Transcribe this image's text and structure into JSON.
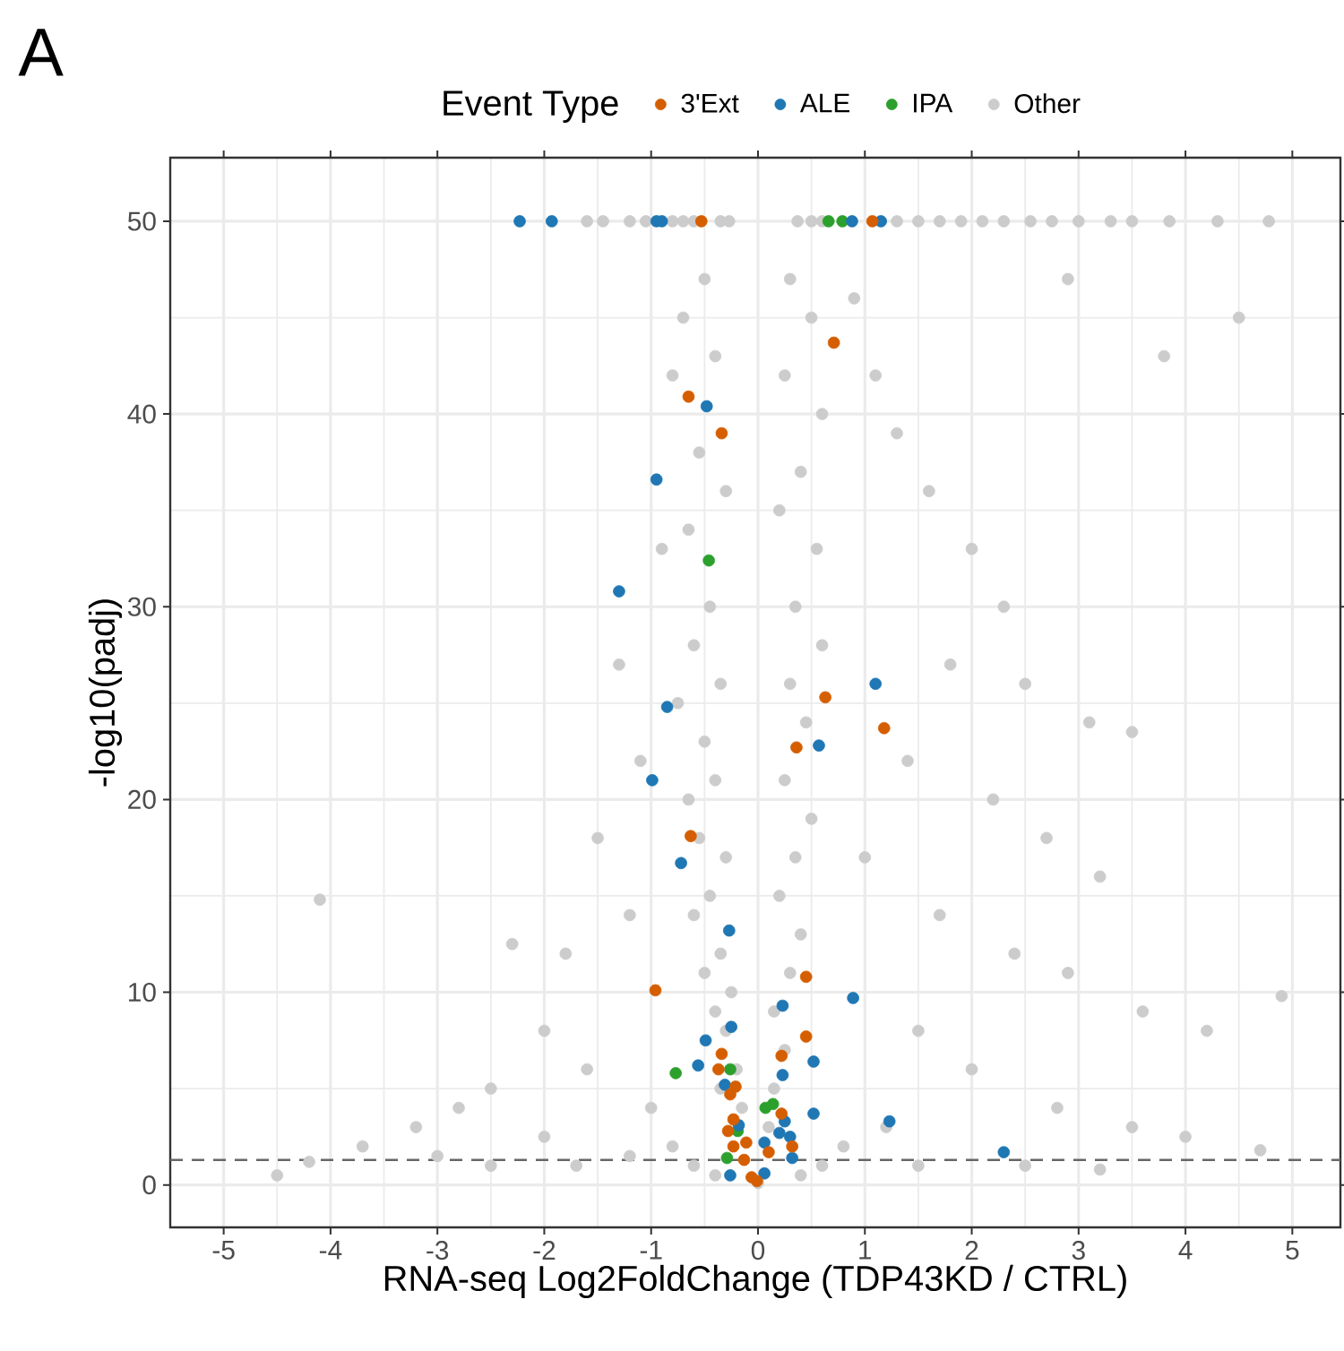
{
  "chart_data": {
    "type": "scatter",
    "xlabel": "RNA-seq Log2FoldChange (TDP43KD / CTRL)",
    "ylabel": "-log10(padj)",
    "legend_title": "Event Type",
    "annotations": [
      "A"
    ],
    "xlim": [
      -5.5,
      5.45
    ],
    "ylim": [
      -2.2,
      53.3
    ],
    "xticks": [
      -5,
      -4,
      -3,
      -2,
      -1,
      0,
      1,
      2,
      3,
      4,
      5
    ],
    "yticks": [
      0,
      10,
      20,
      30,
      40,
      50
    ],
    "grid": true,
    "legend": "top",
    "marker": "circle",
    "ref_lines": [
      {
        "axis": "y",
        "value": 1.3,
        "color": "#666666",
        "line_style": "dashed"
      }
    ],
    "series": [
      {
        "name": "3'Ext",
        "color": "#d55e00",
        "x": [
          -0.53,
          1.07,
          0.71,
          -0.65,
          -0.34,
          0.63,
          1.18,
          0.36,
          -0.63,
          0.45,
          -0.96,
          0.45,
          -0.34,
          0.22,
          -0.37,
          -0.21,
          -0.26,
          0.22,
          -0.23,
          -0.28,
          -0.11,
          -0.23,
          0.32,
          0.1,
          -0.13,
          -0.06,
          -0.01
        ],
        "values": [
          50,
          50,
          43.7,
          40.9,
          39.0,
          25.3,
          23.7,
          22.7,
          18.1,
          10.8,
          10.1,
          7.7,
          6.8,
          6.7,
          6.0,
          5.1,
          4.7,
          3.7,
          3.4,
          2.8,
          2.2,
          2.0,
          2.0,
          1.7,
          1.3,
          0.4,
          0.2
        ]
      },
      {
        "name": "ALE",
        "color": "#1f77b4",
        "x": [
          -2.23,
          -1.93,
          -0.95,
          -0.9,
          0.88,
          1.15,
          -0.48,
          -0.95,
          -1.3,
          1.1,
          -0.85,
          0.57,
          -0.99,
          -0.72,
          -0.27,
          0.89,
          0.23,
          -0.25,
          -0.49,
          0.52,
          -0.56,
          0.23,
          -0.31,
          0.52,
          1.23,
          0.25,
          -0.18,
          0.2,
          0.3,
          0.06,
          0.32,
          -0.26,
          0.06,
          2.3
        ],
        "values": [
          50,
          50,
          50,
          50,
          50,
          50,
          40.4,
          36.6,
          30.8,
          26.0,
          24.8,
          22.8,
          21.0,
          16.7,
          13.2,
          9.7,
          9.3,
          8.2,
          7.5,
          6.4,
          6.2,
          5.7,
          5.2,
          3.7,
          3.3,
          3.3,
          3.1,
          2.7,
          2.5,
          2.2,
          1.4,
          0.5,
          0.6,
          1.7
        ]
      },
      {
        "name": "IPA",
        "color": "#2ca02c",
        "x": [
          0.66,
          0.79,
          -0.46,
          -0.26,
          -0.77,
          0.07,
          0.14,
          -0.19,
          -0.29
        ],
        "values": [
          50,
          50,
          32.4,
          6.0,
          5.8,
          4.0,
          4.2,
          2.8,
          1.4
        ]
      },
      {
        "name": "Other",
        "color": "#cccccc",
        "x": [
          -1.6,
          -1.45,
          -1.2,
          -1.05,
          -0.8,
          -0.7,
          -0.6,
          -0.35,
          -0.27,
          0.37,
          0.5,
          0.6,
          1.3,
          1.5,
          1.7,
          1.9,
          2.1,
          2.3,
          2.55,
          2.75,
          3.0,
          3.3,
          3.5,
          3.85,
          4.3,
          4.78,
          -0.5,
          -0.7,
          -0.4,
          -0.8,
          -0.55,
          -0.3,
          -0.65,
          -0.9,
          -0.45,
          -0.6,
          -0.35,
          -0.75,
          -0.5,
          -0.4,
          -0.65,
          -0.55,
          -0.3,
          -0.45,
          -0.6,
          -0.35,
          -0.5,
          -0.25,
          -0.4,
          -0.3,
          -0.2,
          -0.35,
          -0.15,
          -1.3,
          -1.1,
          -1.5,
          -1.8,
          -2.0,
          -1.2,
          -1.6,
          -2.5,
          -2.8,
          -3.2,
          -3.7,
          -4.2,
          -4.5,
          -2.3,
          -4.1,
          -3.0,
          -2.0,
          -1.0,
          -1.2,
          -0.8,
          -0.6,
          -0.4,
          -2.5,
          -1.7,
          0.3,
          0.5,
          0.25,
          0.6,
          0.4,
          0.2,
          0.55,
          0.35,
          0.6,
          0.3,
          0.45,
          0.25,
          0.5,
          0.35,
          0.2,
          0.4,
          0.3,
          0.15,
          0.25,
          0.15,
          0.1,
          0.9,
          1.1,
          1.3,
          1.6,
          2.0,
          2.3,
          1.8,
          2.5,
          3.1,
          3.5,
          1.4,
          2.2,
          2.7,
          3.2,
          1.0,
          1.7,
          2.4,
          2.9,
          3.6,
          4.2,
          4.9,
          1.5,
          2.0,
          2.8,
          3.5,
          4.0,
          4.7,
          1.2,
          0.8,
          0.6,
          0.4,
          0.0,
          1.5,
          2.5,
          3.2,
          4.5,
          3.8,
          2.9
        ],
        "values": [
          50,
          50,
          50,
          50,
          50,
          50,
          50,
          50,
          50,
          50,
          50,
          50,
          50,
          50,
          50,
          50,
          50,
          50,
          50,
          50,
          50,
          50,
          50,
          50,
          50,
          50,
          47,
          45,
          43,
          42,
          38,
          36,
          34,
          33,
          30,
          28,
          26,
          25,
          23,
          21,
          20,
          18,
          17,
          15,
          14,
          12,
          11,
          10,
          9,
          8,
          6,
          5,
          4,
          27,
          22,
          18,
          12,
          8,
          14,
          6,
          5,
          4,
          3,
          2,
          1.2,
          0.5,
          12.5,
          14.8,
          1.5,
          2.5,
          4,
          1.5,
          2,
          1,
          0.5,
          1,
          1,
          47,
          45,
          42,
          40,
          37,
          35,
          33,
          30,
          28,
          26,
          24,
          21,
          19,
          17,
          15,
          13,
          11,
          9,
          7,
          5,
          3,
          46,
          42,
          39,
          36,
          33,
          30,
          27,
          26,
          24,
          23.5,
          22,
          20,
          18,
          16,
          17,
          14,
          12,
          11,
          9,
          8,
          9.8,
          8,
          6,
          4,
          3,
          2.5,
          1.8,
          3,
          2,
          1,
          0.5,
          0.1,
          1,
          1,
          0.8,
          45,
          43,
          47
        ]
      }
    ]
  }
}
